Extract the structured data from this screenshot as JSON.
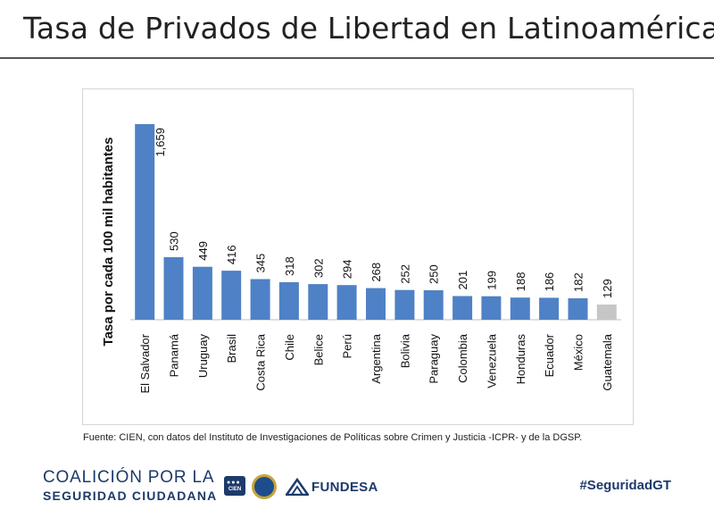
{
  "header": {
    "title": "Tasa de Privados de Libertad en Latinoamérica"
  },
  "source_note": "Fuente: CIEN, con datos del Instituto de Investigaciones de Políticas sobre Crimen y Justicia -ICPR- y de la DGSP.",
  "footer": {
    "coalicion_line1": "COALICIÓN POR LA",
    "coalicion_line2": "SEGURIDAD CIUDADANA",
    "cien_logo_text": "CIEN",
    "fundesa": "FUNDESA",
    "hashtag": "#SeguridadGT"
  },
  "colors": {
    "bar": "#4f81c6",
    "highlight": "#c6c6c6",
    "brand": "#1d3a6b"
  },
  "chart_data": {
    "type": "bar",
    "title": "",
    "xlabel": "",
    "ylabel": "Tasa por cada 100 mil habitantes",
    "ylim": [
      0,
      1700
    ],
    "grid": false,
    "categories": [
      "El Salvador",
      "Panamá",
      "Uruguay",
      "Brasil",
      "Costa Rica",
      "Chile",
      "Belice",
      "Perú",
      "Argentina",
      "Bolivia",
      "Paraguay",
      "Colombia",
      "Venezuela",
      "Honduras",
      "Ecuador",
      "México",
      "Guatemala"
    ],
    "values": [
      1659,
      530,
      449,
      416,
      345,
      318,
      302,
      294,
      268,
      252,
      250,
      201,
      199,
      188,
      186,
      182,
      129
    ],
    "data_labels": [
      "1,659",
      "530",
      "449",
      "416",
      "345",
      "318",
      "302",
      "294",
      "268",
      "252",
      "250",
      "201",
      "199",
      "188",
      "186",
      "182",
      "129"
    ],
    "highlight_category": "Guatemala"
  }
}
